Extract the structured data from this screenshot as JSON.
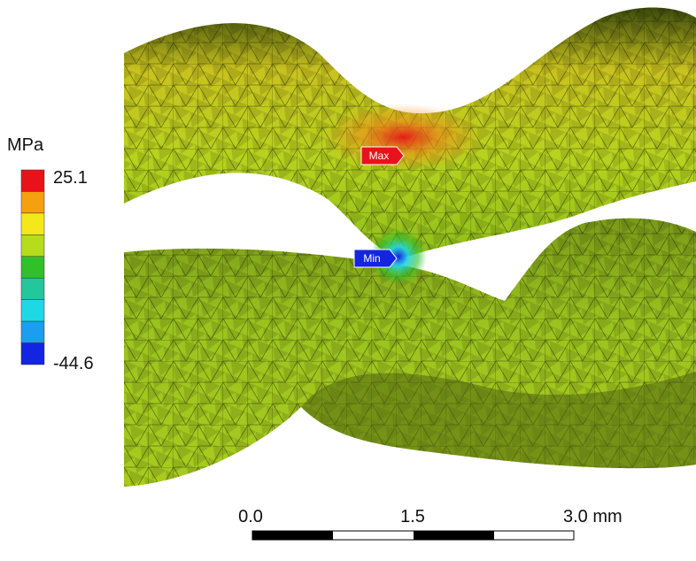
{
  "legend": {
    "unit": "MPa",
    "max": "25.1",
    "min": "-44.6",
    "colors": [
      "#e8131a",
      "#f5a00f",
      "#f4e81a",
      "#b6dc1c",
      "#2fc02a",
      "#23c79b",
      "#1fd8e6",
      "#1b9ef0",
      "#1325e0"
    ]
  },
  "markers": {
    "max": "Max",
    "min": "Min"
  },
  "scale_bar": {
    "labels": [
      "0.0",
      "1.5",
      "3.0 mm"
    ]
  }
}
